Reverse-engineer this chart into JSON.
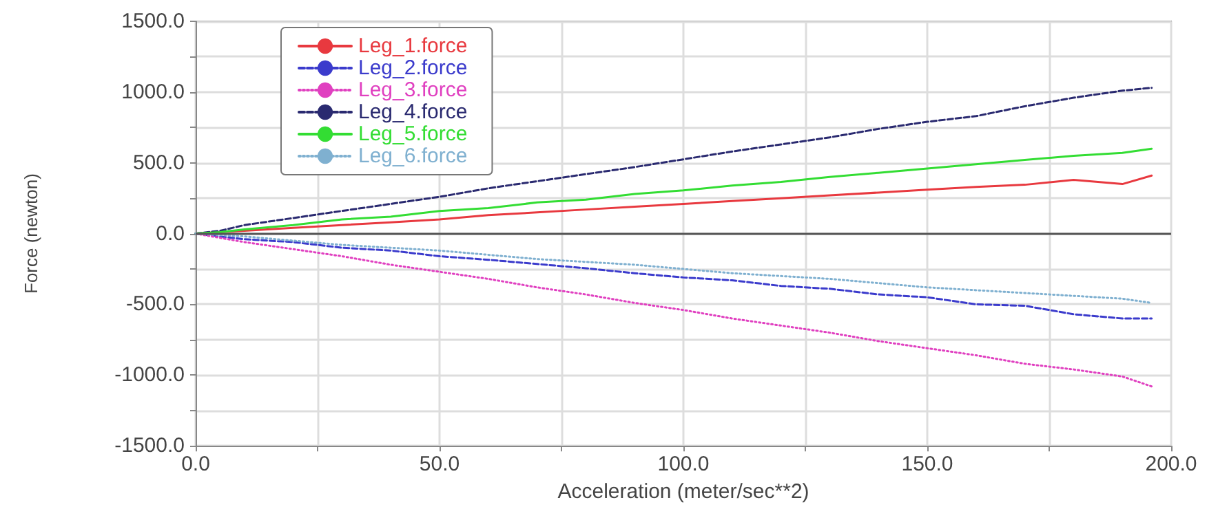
{
  "chart_data": {
    "type": "line",
    "xlabel": "Acceleration (meter/sec**2)",
    "ylabel": "Force (newton)",
    "xlim": [
      0,
      200
    ],
    "xticks": [
      {
        "value": 0,
        "label": "0.0"
      },
      {
        "value": 25,
        "label": null
      },
      {
        "value": 50,
        "label": "50.0"
      },
      {
        "value": 75,
        "label": null
      },
      {
        "value": 100,
        "label": "100.0"
      },
      {
        "value": 125,
        "label": null
      },
      {
        "value": 150,
        "label": "150.0"
      },
      {
        "value": 175,
        "label": null
      },
      {
        "value": 200,
        "label": "200.0"
      }
    ],
    "ylim": [
      -1500,
      1500
    ],
    "yticks": [
      {
        "value": -1500,
        "label": "-1500.0"
      },
      {
        "value": -1250,
        "label": null
      },
      {
        "value": -1000,
        "label": "-1000.0"
      },
      {
        "value": -750,
        "label": null
      },
      {
        "value": -500,
        "label": "-500.0"
      },
      {
        "value": -250,
        "label": null
      },
      {
        "value": 0,
        "label": "0.0"
      },
      {
        "value": 250,
        "label": null
      },
      {
        "value": 500,
        "label": "500.0"
      },
      {
        "value": 750,
        "label": null
      },
      {
        "value": 1000,
        "label": "1000.0"
      },
      {
        "value": 1250,
        "label": null
      },
      {
        "value": 1500,
        "label": "1500.0"
      }
    ],
    "grid": true,
    "legend": "top left",
    "marker": "none",
    "ref_lines": [
      {
        "axis": "y",
        "value": 0,
        "color": "#555555",
        "line_style": "solid"
      }
    ],
    "x": [
      0,
      5,
      10,
      20,
      30,
      40,
      50,
      60,
      70,
      80,
      90,
      100,
      110,
      120,
      130,
      140,
      150,
      160,
      170,
      180,
      190,
      196
    ],
    "series": [
      {
        "name": "Leg_1.force",
        "color": "#e8393f",
        "line_style": "solid",
        "values": [
          0,
          10,
          20,
          40,
          60,
          80,
          100,
          130,
          150,
          170,
          190,
          210,
          230,
          250,
          270,
          290,
          310,
          330,
          345,
          380,
          350,
          410
        ]
      },
      {
        "name": "Leg_2.force",
        "color": "#3b3bcc",
        "line_style": "dashed",
        "values": [
          0,
          -20,
          -40,
          -60,
          -100,
          -120,
          -160,
          -185,
          -215,
          -245,
          -280,
          -310,
          -330,
          -370,
          -390,
          -430,
          -450,
          -500,
          -510,
          -570,
          -600,
          -600
        ]
      },
      {
        "name": "Leg_3.force",
        "color": "#e040c0",
        "line_style": "dotted",
        "values": [
          0,
          -30,
          -60,
          -110,
          -160,
          -220,
          -270,
          -320,
          -380,
          -430,
          -490,
          -540,
          -600,
          -650,
          -700,
          -760,
          -810,
          -860,
          -920,
          -960,
          -1010,
          -1080
        ]
      },
      {
        "name": "Leg_4.force",
        "color": "#2a2a70",
        "line_style": "dashed",
        "values": [
          0,
          20,
          60,
          110,
          160,
          210,
          260,
          320,
          370,
          420,
          470,
          525,
          580,
          630,
          680,
          740,
          790,
          830,
          900,
          960,
          1010,
          1030
        ]
      },
      {
        "name": "Leg_5.force",
        "color": "#33dd33",
        "line_style": "solid",
        "values": [
          0,
          10,
          30,
          60,
          100,
          120,
          160,
          180,
          220,
          240,
          280,
          305,
          340,
          365,
          400,
          430,
          460,
          490,
          520,
          550,
          570,
          600
        ]
      },
      {
        "name": "Leg_6.force",
        "color": "#7fb0d0",
        "line_style": "dotted",
        "values": [
          0,
          -10,
          -20,
          -50,
          -80,
          -100,
          -120,
          -150,
          -180,
          -200,
          -220,
          -250,
          -280,
          -300,
          -320,
          -350,
          -380,
          -400,
          -420,
          -440,
          -460,
          -490
        ]
      }
    ]
  }
}
